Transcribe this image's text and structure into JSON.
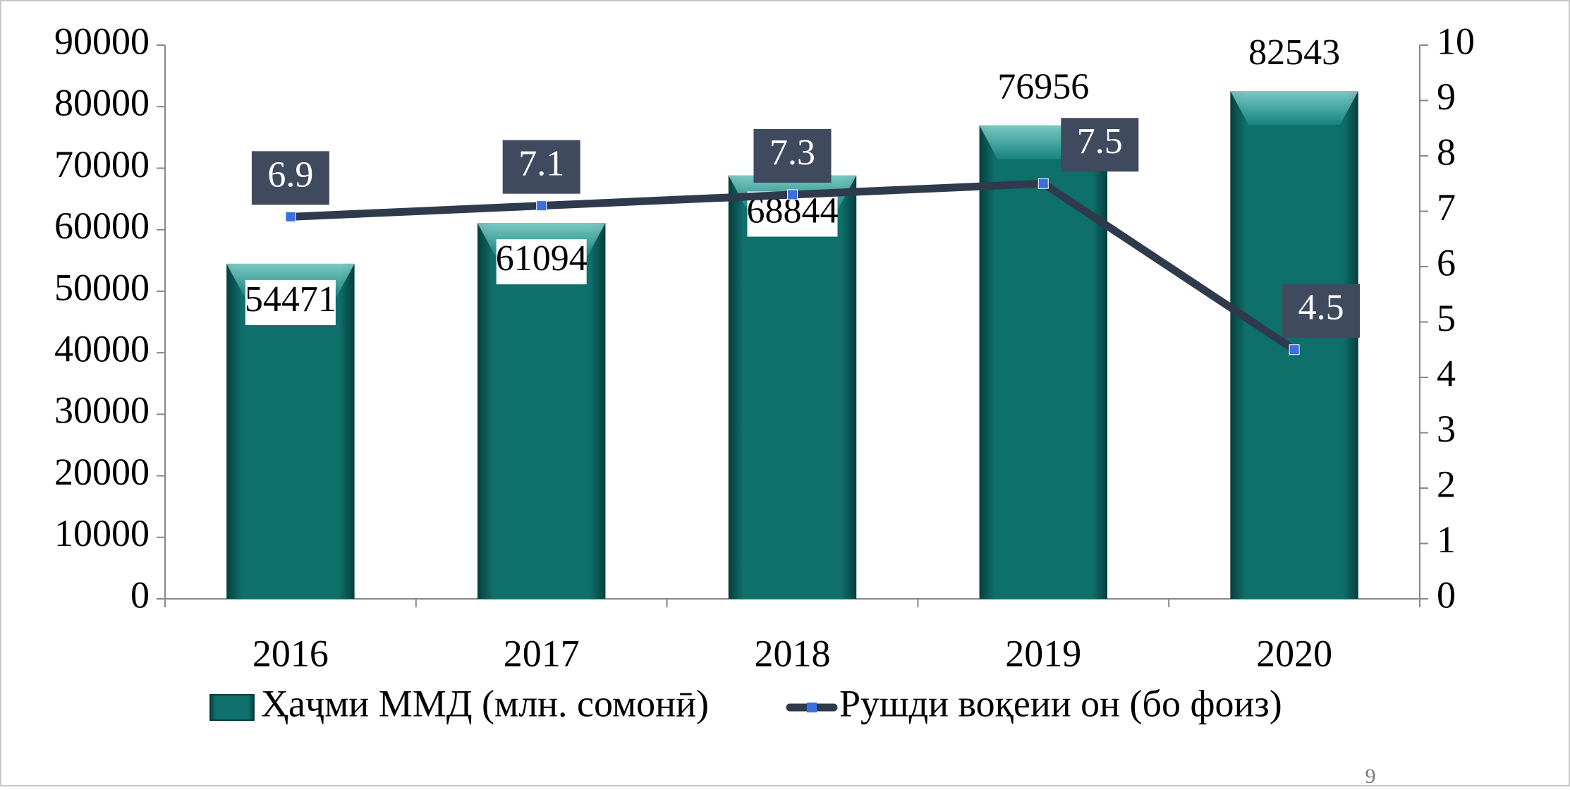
{
  "chart_data": {
    "type": "bar",
    "categories": [
      "2016",
      "2017",
      "2018",
      "2019",
      "2020"
    ],
    "series": [
      {
        "name": "Ҳаҷми ММД (млн. сомонӣ)",
        "color": "#0f6f6b",
        "values": [
          54471,
          61094,
          68844,
          76956,
          82543
        ]
      },
      {
        "name": "Рушди воқеии он (бо фоиз)",
        "color": "#2f3b4d",
        "marker_color": "#3b6fe0",
        "type": "line",
        "axis": "y2",
        "values": [
          6.9,
          7.1,
          7.3,
          7.5,
          4.5
        ]
      }
    ],
    "ylim": [
      0,
      90000
    ],
    "yticks": [
      0,
      10000,
      20000,
      30000,
      40000,
      50000,
      60000,
      70000,
      80000,
      90000
    ],
    "y2lim": [
      0,
      10
    ],
    "y2ticks": [
      0,
      1,
      2,
      3,
      4,
      5,
      6,
      7,
      8,
      9,
      10
    ],
    "legend": "bottom",
    "page_number": "9"
  }
}
